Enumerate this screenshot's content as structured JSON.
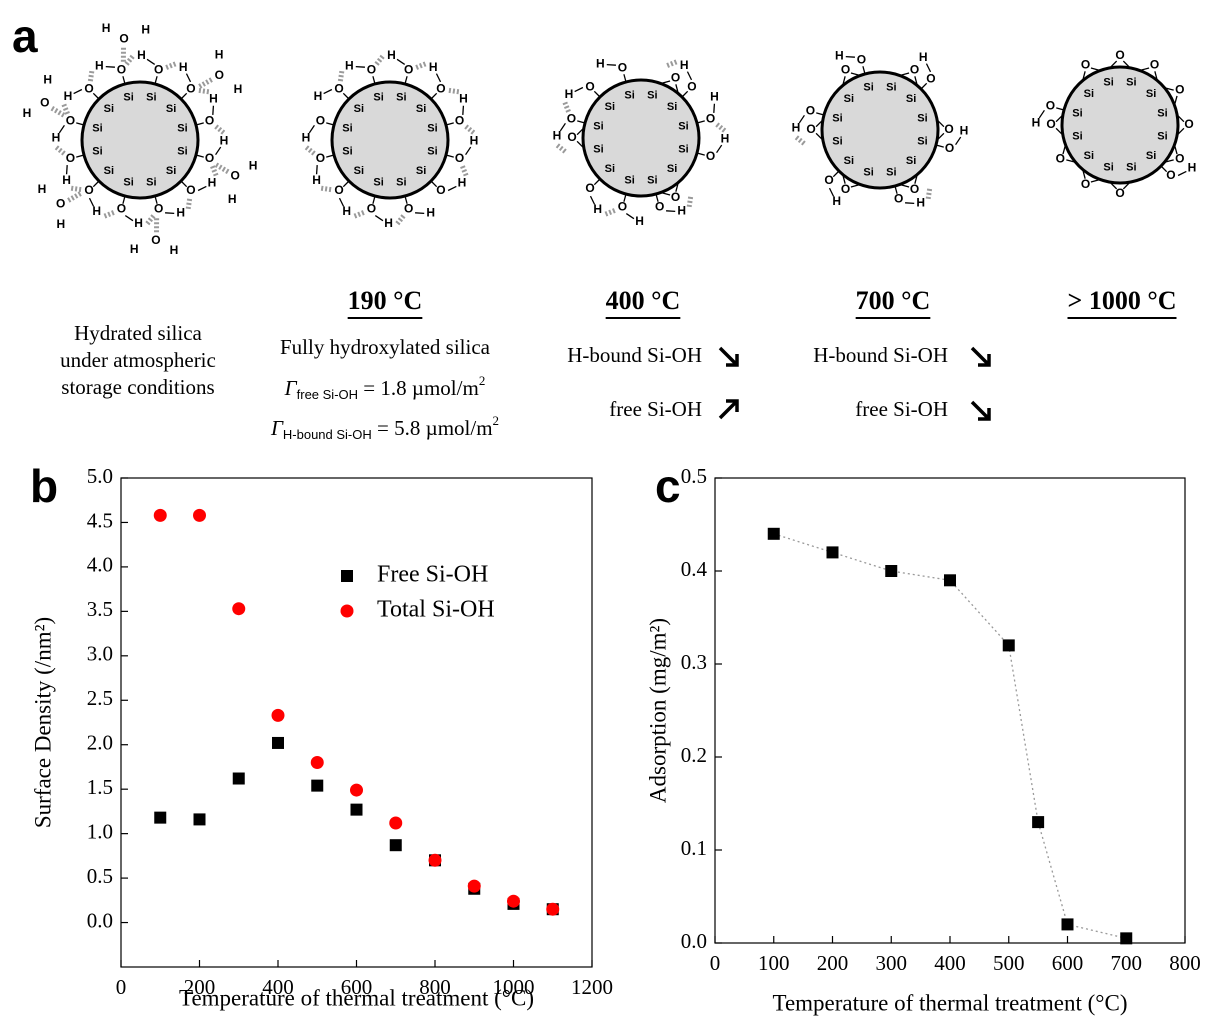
{
  "figure": {
    "panel_label": "a",
    "atoms": {
      "si": "Si",
      "o": "O",
      "h": "H"
    },
    "stages": [
      {
        "heading": null,
        "description": [
          "Hydrated silica",
          "under atmospheric",
          "storage conditions"
        ]
      },
      {
        "heading": "190 °C",
        "description": [
          "Fully hydroxylated silica"
        ],
        "densities": [
          {
            "symbol": "Γ",
            "subscript": "free Si-OH",
            "text": " = 1.8 µmol/m",
            "superscript": "2"
          },
          {
            "symbol": "Γ",
            "subscript": "H-bound Si-OH",
            "text": " = 5.8 µmol/m",
            "superscript": "2"
          }
        ]
      },
      {
        "heading": "400 °C",
        "trends": [
          "H-bound Si-OH",
          "free Si-OH"
        ]
      },
      {
        "heading": "700 °C",
        "trends": [
          "H-bound Si-OH",
          "free Si-OH"
        ]
      },
      {
        "heading": "> 1000 °C"
      }
    ]
  },
  "chart_data": [
    {
      "type": "scatter",
      "panel_label": "b",
      "xlabel": "Temperature of thermal treatment (°C)",
      "ylabel": "Surface Density (/nm²)",
      "x": [
        100,
        200,
        300,
        400,
        500,
        600,
        700,
        800,
        900,
        1000,
        1100
      ],
      "series": [
        {
          "name": "Free Si-OH",
          "color": "#000000",
          "marker": "square",
          "values": [
            1.18,
            1.16,
            1.62,
            2.02,
            1.54,
            1.27,
            0.87,
            0.7,
            0.38,
            0.21,
            0.15
          ]
        },
        {
          "name": "Total Si-OH",
          "color": "#ff0000",
          "marker": "circle",
          "values": [
            4.58,
            4.58,
            3.53,
            2.33,
            1.8,
            1.49,
            1.12,
            0.7,
            0.41,
            0.24,
            0.15
          ]
        }
      ],
      "xlim": [
        0,
        1200
      ],
      "xticks": [
        0,
        200,
        400,
        600,
        800,
        1000,
        1200
      ],
      "ylim": [
        -0.5,
        5.0
      ],
      "yticks": [
        {
          "value": 0,
          "label": "0.0"
        },
        0.5,
        {
          "value": 1,
          "label": "1.0"
        },
        1.5,
        {
          "value": 2,
          "label": "2.0"
        },
        2.5,
        {
          "value": 3,
          "label": "3.0"
        },
        3.5,
        {
          "value": 4,
          "label": "4.0"
        },
        4.5,
        {
          "value": 5,
          "label": "5.0"
        }
      ],
      "legend": "upper right"
    },
    {
      "type": "line",
      "panel_label": "c",
      "xlabel": "Temperature of thermal treatment (°C)",
      "ylabel": "Adsorption (mg/m²)",
      "x": [
        100,
        200,
        300,
        400,
        500,
        550,
        600,
        700
      ],
      "values": [
        0.44,
        0.42,
        0.4,
        0.39,
        0.32,
        0.13,
        0.02,
        0.005
      ],
      "color": "#000000",
      "marker": "square",
      "line_color": "#999999",
      "line_style": "dotted",
      "xlim": [
        0,
        800
      ],
      "xticks": [
        0,
        100,
        200,
        300,
        400,
        500,
        600,
        700,
        800
      ],
      "ylim": [
        0,
        0.5
      ],
      "yticks": [
        {
          "value": 0,
          "label": "0.0"
        },
        0.1,
        0.2,
        0.3,
        0.4,
        0.5
      ]
    }
  ]
}
